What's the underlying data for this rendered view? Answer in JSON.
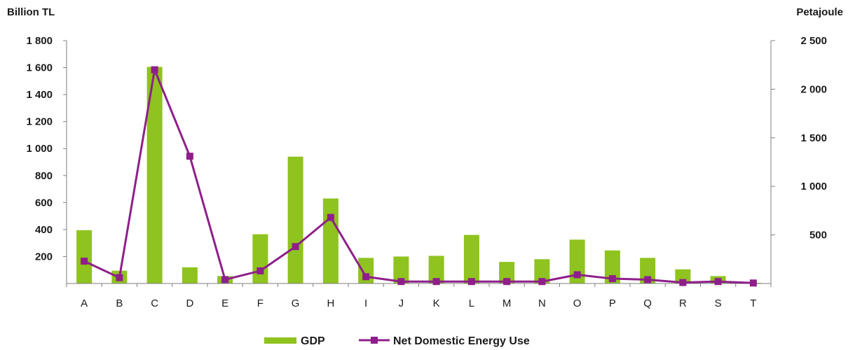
{
  "chart_data": {
    "type": "bar",
    "categories": [
      "A",
      "B",
      "C",
      "D",
      "E",
      "F",
      "G",
      "H",
      "I",
      "J",
      "K",
      "L",
      "M",
      "N",
      "O",
      "P",
      "Q",
      "R",
      "S",
      "T"
    ],
    "series": [
      {
        "name": "GDP",
        "type": "bar",
        "axis": "left",
        "color": "#8fc31f",
        "values": [
          395,
          95,
          1605,
          120,
          55,
          365,
          940,
          630,
          190,
          200,
          205,
          360,
          160,
          180,
          325,
          245,
          190,
          105,
          55,
          5
        ]
      },
      {
        "name": "Net Domestic Energy Use",
        "type": "line",
        "axis": "right",
        "color": "#8e1f8a",
        "values": [
          230,
          60,
          2200,
          1310,
          40,
          130,
          380,
          680,
          70,
          20,
          20,
          20,
          20,
          20,
          90,
          50,
          40,
          10,
          20,
          5
        ]
      }
    ],
    "left_axis": {
      "label": "Billion TL",
      "ylim": [
        0,
        1800
      ],
      "ticks": [
        200,
        400,
        600,
        800,
        1000,
        1200,
        1400,
        1600,
        1800
      ],
      "tick_labels": [
        "200",
        "400",
        "600",
        "800",
        "1 000",
        "1 200",
        "1 400",
        "1 600",
        "1 800"
      ]
    },
    "right_axis": {
      "label": "Petajoule",
      "ylim": [
        0,
        2500
      ],
      "ticks": [
        500,
        1000,
        1500,
        2000,
        2500
      ],
      "tick_labels": [
        "500",
        "1 000",
        "1 500",
        "2 000",
        "2 500"
      ]
    },
    "grid": false,
    "legend_position": "bottom-center"
  }
}
